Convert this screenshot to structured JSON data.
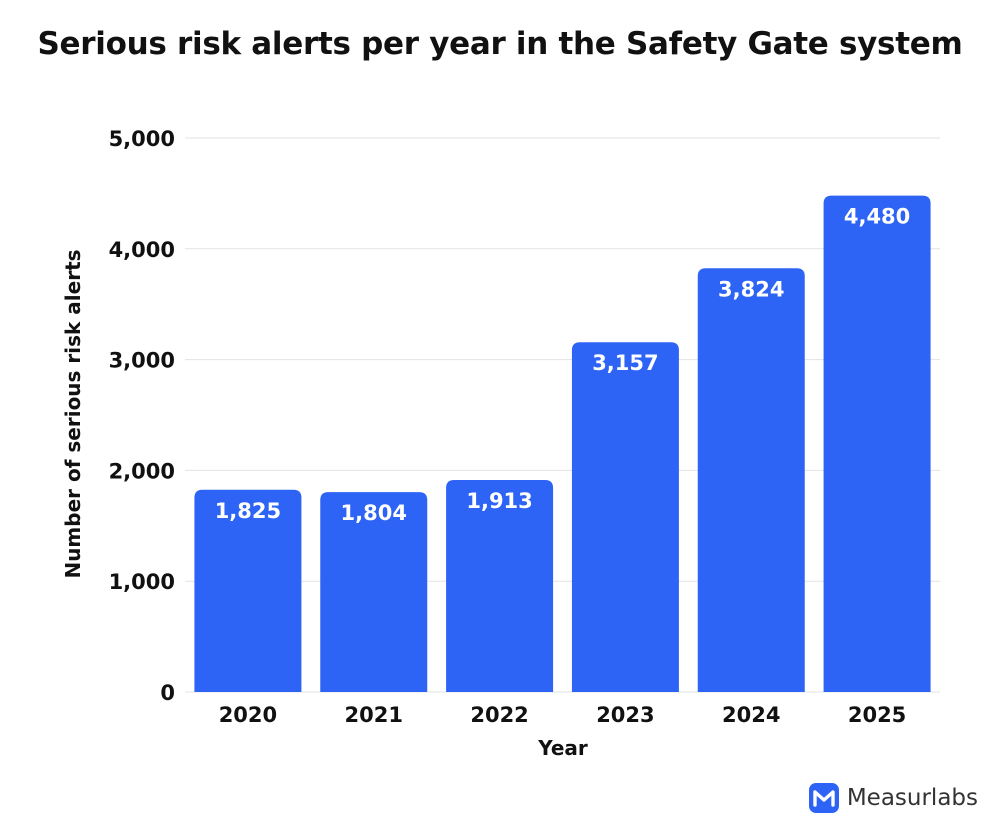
{
  "chart_data": {
    "type": "bar",
    "title": "Serious risk alerts per year in the Safety Gate system",
    "xlabel": "Year",
    "ylabel": "Number of serious risk alerts",
    "categories": [
      "2020",
      "2021",
      "2022",
      "2023",
      "2024",
      "2025"
    ],
    "values": [
      1825,
      1804,
      1913,
      3157,
      3824,
      4480
    ],
    "value_labels": [
      "1,825",
      "1,804",
      "1,913",
      "3,157",
      "3,824",
      "4,480"
    ],
    "ylim": [
      0,
      5000
    ],
    "yticks": [
      0,
      1000,
      2000,
      3000,
      4000,
      5000
    ],
    "ytick_labels": [
      "0",
      "1,000",
      "2,000",
      "3,000",
      "4,000",
      "5,000"
    ],
    "grid": true,
    "bar_color": "#2e64f5"
  },
  "brand": {
    "name": "Measurlabs",
    "logo_letter": "M",
    "logo_color": "#2e64f5"
  }
}
